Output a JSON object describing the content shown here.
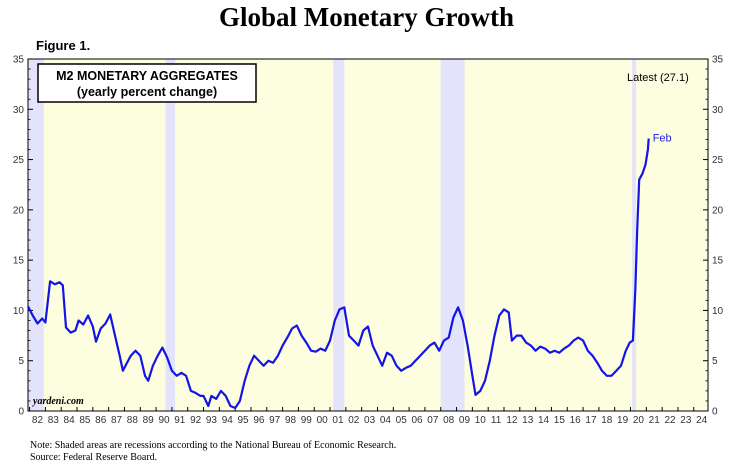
{
  "page": {
    "title": "Global Monetary Growth",
    "figure_label": "Figure 1.",
    "note": "Note: Shaded areas are recessions according to the National Bureau of Economic Research.",
    "source": "Source: Federal Reserve Board."
  },
  "colors": {
    "plot_background": "#fdfde0",
    "recession_shade": "#e3e3fb",
    "line": "#1414e6"
  },
  "chart_data": {
    "type": "line",
    "title": "M2 MONETARY AGGREGATES",
    "subtitle": "(yearly percent change)",
    "watermark": "yardeni.com",
    "annotation_latest": "Latest (27.1)",
    "end_label": "Feb",
    "ylim": [
      0,
      35
    ],
    "yticks": [
      0,
      5,
      10,
      15,
      20,
      25,
      30,
      35
    ],
    "y_axis_both_sides": true,
    "grid": false,
    "xlim": [
      1981.9,
      2024.9
    ],
    "xtick_labels": [
      "82",
      "83",
      "84",
      "85",
      "86",
      "87",
      "88",
      "89",
      "90",
      "91",
      "92",
      "93",
      "94",
      "95",
      "96",
      "97",
      "98",
      "99",
      "00",
      "01",
      "02",
      "03",
      "04",
      "05",
      "06",
      "07",
      "08",
      "09",
      "10",
      "11",
      "12",
      "13",
      "14",
      "15",
      "16",
      "17",
      "18",
      "19",
      "20",
      "21",
      "22",
      "23",
      "24"
    ],
    "recessions": [
      {
        "start": 1981.9,
        "end": 1982.9
      },
      {
        "start": 1990.6,
        "end": 1991.2
      },
      {
        "start": 2001.2,
        "end": 2001.9
      },
      {
        "start": 2008.0,
        "end": 2009.5
      },
      {
        "start": 2020.1,
        "end": 2020.35
      }
    ],
    "series": [
      {
        "name": "",
        "points": [
          [
            1981.9,
            10.4
          ],
          [
            1982.2,
            9.5
          ],
          [
            1982.5,
            8.7
          ],
          [
            1982.8,
            9.2
          ],
          [
            1983.0,
            8.8
          ],
          [
            1983.3,
            12.9
          ],
          [
            1983.6,
            12.6
          ],
          [
            1983.9,
            12.8
          ],
          [
            1984.1,
            12.5
          ],
          [
            1984.3,
            8.3
          ],
          [
            1984.6,
            7.8
          ],
          [
            1984.9,
            8.0
          ],
          [
            1985.1,
            9.0
          ],
          [
            1985.4,
            8.6
          ],
          [
            1985.7,
            9.5
          ],
          [
            1986.0,
            8.4
          ],
          [
            1986.2,
            6.9
          ],
          [
            1986.5,
            8.2
          ],
          [
            1986.8,
            8.7
          ],
          [
            1987.1,
            9.6
          ],
          [
            1987.4,
            7.5
          ],
          [
            1987.7,
            5.5
          ],
          [
            1987.9,
            4.0
          ],
          [
            1988.1,
            4.6
          ],
          [
            1988.4,
            5.5
          ],
          [
            1988.7,
            6.0
          ],
          [
            1989.0,
            5.5
          ],
          [
            1989.3,
            3.5
          ],
          [
            1989.5,
            3.0
          ],
          [
            1989.8,
            4.5
          ],
          [
            1990.1,
            5.5
          ],
          [
            1990.4,
            6.3
          ],
          [
            1990.7,
            5.3
          ],
          [
            1991.0,
            4.0
          ],
          [
            1991.3,
            3.5
          ],
          [
            1991.6,
            3.8
          ],
          [
            1991.9,
            3.5
          ],
          [
            1992.2,
            2.0
          ],
          [
            1992.5,
            1.8
          ],
          [
            1992.8,
            1.5
          ],
          [
            1993.0,
            1.5
          ],
          [
            1993.3,
            0.5
          ],
          [
            1993.5,
            1.5
          ],
          [
            1993.8,
            1.2
          ],
          [
            1994.1,
            2.0
          ],
          [
            1994.4,
            1.5
          ],
          [
            1994.7,
            0.5
          ],
          [
            1995.0,
            0.3
          ],
          [
            1995.3,
            1.0
          ],
          [
            1995.6,
            3.0
          ],
          [
            1995.9,
            4.5
          ],
          [
            1996.2,
            5.5
          ],
          [
            1996.5,
            5.0
          ],
          [
            1996.8,
            4.5
          ],
          [
            1997.1,
            5.0
          ],
          [
            1997.4,
            4.8
          ],
          [
            1997.7,
            5.5
          ],
          [
            1998.0,
            6.5
          ],
          [
            1998.3,
            7.3
          ],
          [
            1998.6,
            8.2
          ],
          [
            1998.9,
            8.5
          ],
          [
            1999.2,
            7.5
          ],
          [
            1999.5,
            6.8
          ],
          [
            1999.8,
            6.0
          ],
          [
            2000.1,
            5.9
          ],
          [
            2000.4,
            6.2
          ],
          [
            2000.7,
            6.0
          ],
          [
            2001.0,
            7.0
          ],
          [
            2001.3,
            9.0
          ],
          [
            2001.6,
            10.1
          ],
          [
            2001.9,
            10.3
          ],
          [
            2002.2,
            7.5
          ],
          [
            2002.5,
            7.0
          ],
          [
            2002.8,
            6.5
          ],
          [
            2003.1,
            8.0
          ],
          [
            2003.4,
            8.4
          ],
          [
            2003.7,
            6.5
          ],
          [
            2004.0,
            5.5
          ],
          [
            2004.3,
            4.5
          ],
          [
            2004.6,
            5.8
          ],
          [
            2004.9,
            5.5
          ],
          [
            2005.2,
            4.5
          ],
          [
            2005.5,
            4.0
          ],
          [
            2005.8,
            4.3
          ],
          [
            2006.1,
            4.5
          ],
          [
            2006.4,
            5.0
          ],
          [
            2006.7,
            5.5
          ],
          [
            2007.0,
            6.0
          ],
          [
            2007.3,
            6.5
          ],
          [
            2007.6,
            6.8
          ],
          [
            2007.9,
            6.0
          ],
          [
            2008.2,
            7.0
          ],
          [
            2008.5,
            7.3
          ],
          [
            2008.8,
            9.3
          ],
          [
            2009.1,
            10.3
          ],
          [
            2009.4,
            9.0
          ],
          [
            2009.7,
            6.5
          ],
          [
            2010.0,
            3.5
          ],
          [
            2010.2,
            1.6
          ],
          [
            2010.5,
            2.0
          ],
          [
            2010.8,
            3.0
          ],
          [
            2011.1,
            5.0
          ],
          [
            2011.4,
            7.5
          ],
          [
            2011.7,
            9.5
          ],
          [
            2012.0,
            10.1
          ],
          [
            2012.3,
            9.8
          ],
          [
            2012.5,
            7.0
          ],
          [
            2012.8,
            7.5
          ],
          [
            2013.1,
            7.5
          ],
          [
            2013.4,
            6.8
          ],
          [
            2013.7,
            6.5
          ],
          [
            2014.0,
            6.0
          ],
          [
            2014.3,
            6.4
          ],
          [
            2014.6,
            6.2
          ],
          [
            2014.9,
            5.8
          ],
          [
            2015.2,
            6.0
          ],
          [
            2015.5,
            5.8
          ],
          [
            2015.8,
            6.2
          ],
          [
            2016.1,
            6.5
          ],
          [
            2016.4,
            7.0
          ],
          [
            2016.7,
            7.3
          ],
          [
            2017.0,
            7.0
          ],
          [
            2017.3,
            6.0
          ],
          [
            2017.6,
            5.5
          ],
          [
            2017.9,
            4.8
          ],
          [
            2018.2,
            4.0
          ],
          [
            2018.5,
            3.5
          ],
          [
            2018.8,
            3.5
          ],
          [
            2019.1,
            4.0
          ],
          [
            2019.4,
            4.5
          ],
          [
            2019.7,
            6.0
          ],
          [
            2019.95,
            6.8
          ],
          [
            2020.15,
            7.0
          ],
          [
            2020.3,
            12.0
          ],
          [
            2020.42,
            18.0
          ],
          [
            2020.55,
            23.0
          ],
          [
            2020.75,
            23.6
          ],
          [
            2020.95,
            24.5
          ],
          [
            2021.1,
            26.0
          ],
          [
            2021.15,
            27.1
          ]
        ]
      }
    ]
  }
}
